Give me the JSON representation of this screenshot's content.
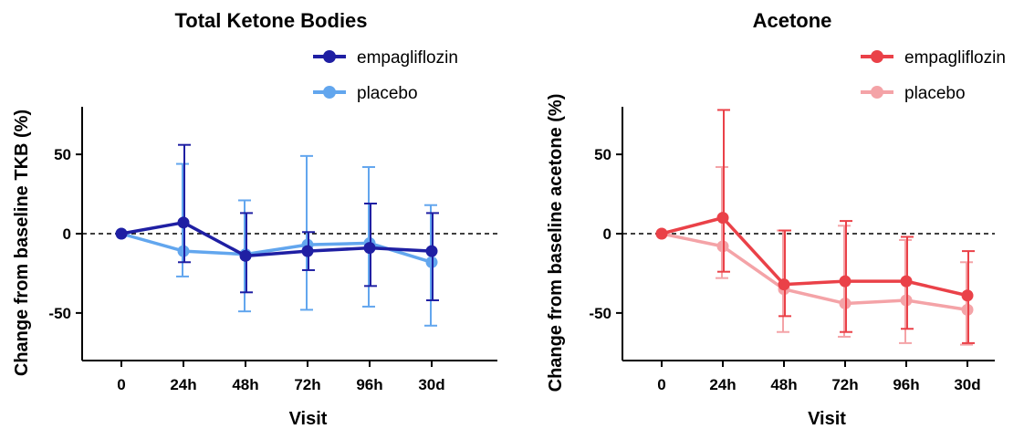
{
  "chart_data": [
    {
      "type": "line",
      "title": "Total Ketone Bodies",
      "xlabel": "Visit",
      "ylabel": "Change from baseline TKB (%)",
      "categories": [
        "0",
        "24h",
        "48h",
        "72h",
        "96h",
        "30d"
      ],
      "ylim": [
        -80,
        80
      ],
      "yticks": [
        -50,
        0,
        50
      ],
      "reference_line": 0,
      "legend_position": "top-right",
      "series": [
        {
          "name": "empagliflozin",
          "color": "#1f1fa3",
          "values": [
            0,
            7,
            -14,
            -11,
            -9,
            -11
          ],
          "err_low": [
            0,
            -18,
            -37,
            -23,
            -33,
            -42
          ],
          "err_high": [
            0,
            56,
            13,
            1,
            19,
            13
          ]
        },
        {
          "name": "placebo",
          "color": "#62a6ee",
          "values": [
            0,
            -11,
            -13,
            -7,
            -6,
            -18
          ],
          "err_low": [
            0,
            -27,
            -49,
            -48,
            -46,
            -58
          ],
          "err_high": [
            0,
            44,
            21,
            49,
            42,
            18
          ]
        }
      ]
    },
    {
      "type": "line",
      "title": "Acetone",
      "xlabel": "Visit",
      "ylabel": "Change from baseline acetone (%)",
      "categories": [
        "0",
        "24h",
        "48h",
        "72h",
        "96h",
        "30d"
      ],
      "ylim": [
        -80,
        80
      ],
      "yticks": [
        -50,
        0,
        50
      ],
      "reference_line": 0,
      "legend_position": "top-right",
      "series": [
        {
          "name": "empagliflozin",
          "color": "#ea4148",
          "values": [
            0,
            10,
            -32,
            -30,
            -30,
            -39
          ],
          "err_low": [
            0,
            -24,
            -52,
            -62,
            -60,
            -69
          ],
          "err_high": [
            0,
            78,
            2,
            8,
            -2,
            -11
          ]
        },
        {
          "name": "placebo",
          "color": "#f4a3a7",
          "values": [
            0,
            -8,
            -35,
            -44,
            -42,
            -48
          ],
          "err_low": [
            0,
            -28,
            -62,
            -65,
            -69,
            -70
          ],
          "err_high": [
            0,
            42,
            2,
            5,
            -4,
            -18
          ]
        }
      ]
    }
  ]
}
